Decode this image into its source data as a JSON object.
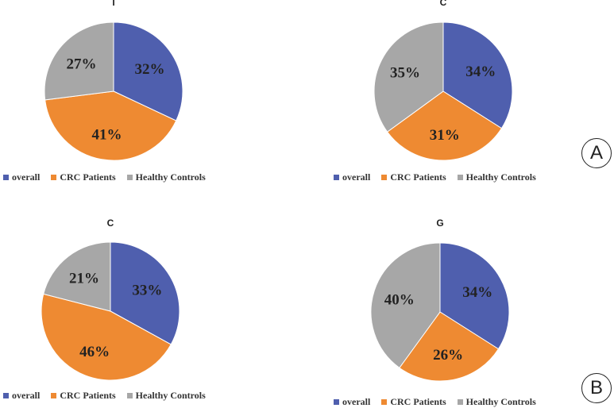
{
  "chart_data": [
    {
      "type": "pie",
      "title": "T",
      "labels": [
        "overall",
        "CRC Patients",
        "Healthy Controls"
      ],
      "values": [
        32,
        41,
        27
      ],
      "value_labels": [
        "32%",
        "41%",
        "27%"
      ]
    },
    {
      "type": "pie",
      "title": "C",
      "labels": [
        "overall",
        "CRC Patients",
        "Healthy Controls"
      ],
      "values": [
        34,
        31,
        35
      ],
      "value_labels": [
        "34%",
        "31%",
        "35%"
      ]
    },
    {
      "type": "pie",
      "title": "C",
      "labels": [
        "overall",
        "CRC Patients",
        "Healthy Controls"
      ],
      "values": [
        33,
        46,
        21
      ],
      "value_labels": [
        "33%",
        "46%",
        "21%"
      ]
    },
    {
      "type": "pie",
      "title": "G",
      "labels": [
        "overall",
        "CRC Patients",
        "Healthy Controls"
      ],
      "values": [
        34,
        26,
        40
      ],
      "value_labels": [
        "34%",
        "26%",
        "40%"
      ]
    }
  ],
  "colors": [
    "#4f5fae",
    "#ee8a32",
    "#a7a7a7"
  ],
  "panel_labels": [
    "A",
    "B"
  ]
}
